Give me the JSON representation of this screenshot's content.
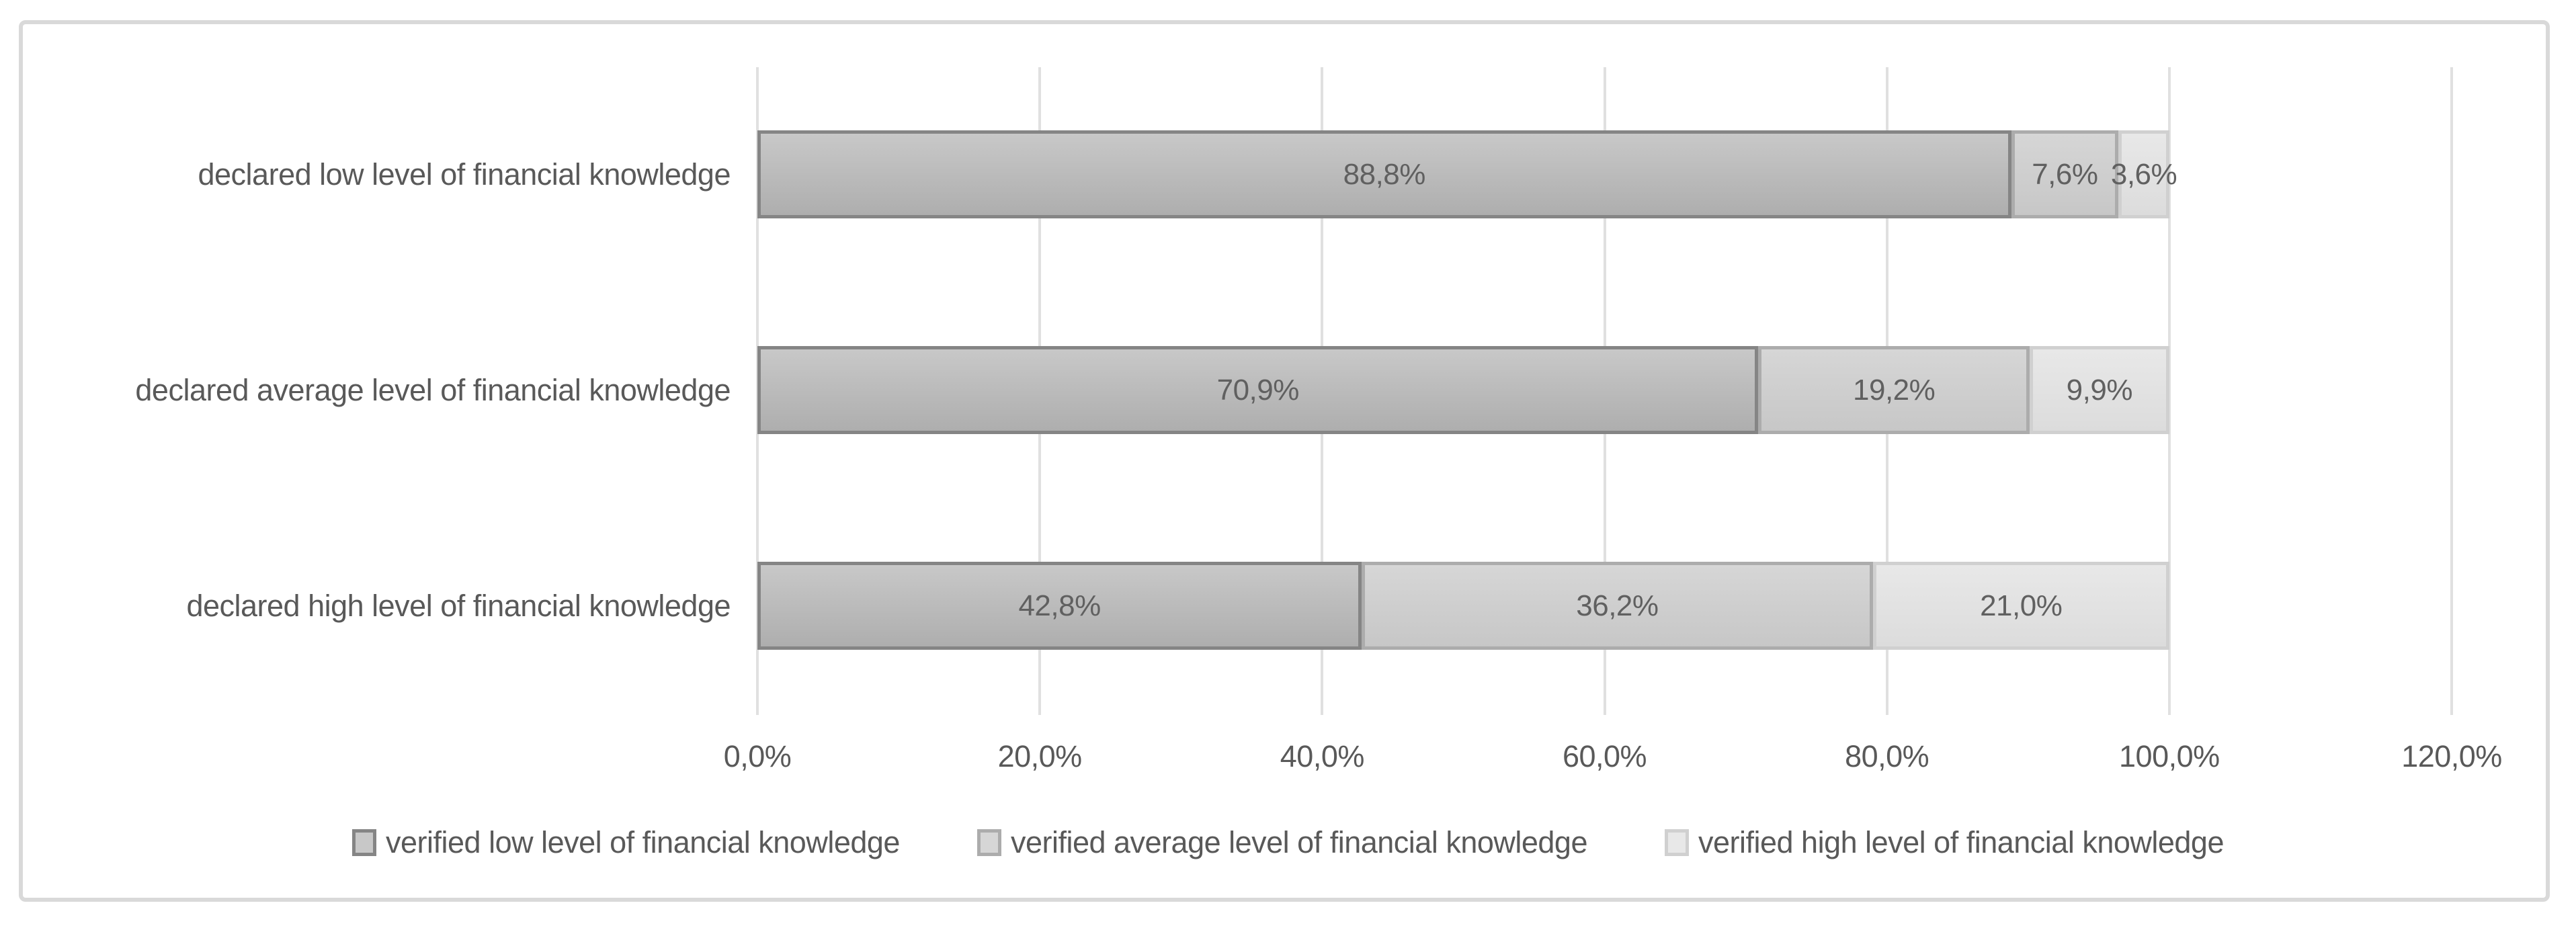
{
  "frame": {
    "border_color": "#d9d9d9",
    "background": "#ffffff"
  },
  "text_color": "#595959",
  "gridline_color": "#e0e0e0",
  "chart_data": {
    "type": "bar",
    "orientation": "horizontal",
    "stacked": true,
    "grid": true,
    "legend_position": "bottom",
    "categories": [
      "declared low level of financial knowledge",
      "declared average level of financial knowledge",
      "declared high level of financial knowledge"
    ],
    "series": [
      {
        "name": "verified low level of financial knowledge",
        "values": [
          88.8,
          70.9,
          42.8
        ],
        "labels": [
          "88,8%",
          "70,9%",
          "42,8%"
        ],
        "fill_top": "#c8c8c8",
        "fill_bottom": "#aeaeae",
        "border": "#858585"
      },
      {
        "name": "verified average level of financial knowledge",
        "values": [
          7.6,
          19.2,
          36.2
        ],
        "labels": [
          "7,6%",
          "19,2%",
          "36,2%"
        ],
        "fill_top": "#d6d6d6",
        "fill_bottom": "#c7c7c7",
        "border": "#acacac"
      },
      {
        "name": "verified high level of financial knowledge",
        "values": [
          3.6,
          9.9,
          21.0
        ],
        "labels": [
          "3,6%",
          "9,9%",
          "21,0%"
        ],
        "fill_top": "#e8e8e8",
        "fill_bottom": "#dcdcdc",
        "border": "#d0d0d0"
      }
    ],
    "x_axis": {
      "min": 0,
      "max": 120,
      "unit": "%",
      "ticks": [
        "0,0%",
        "20,0%",
        "40,0%",
        "60,0%",
        "80,0%",
        "100,0%",
        "120,0%"
      ]
    }
  }
}
